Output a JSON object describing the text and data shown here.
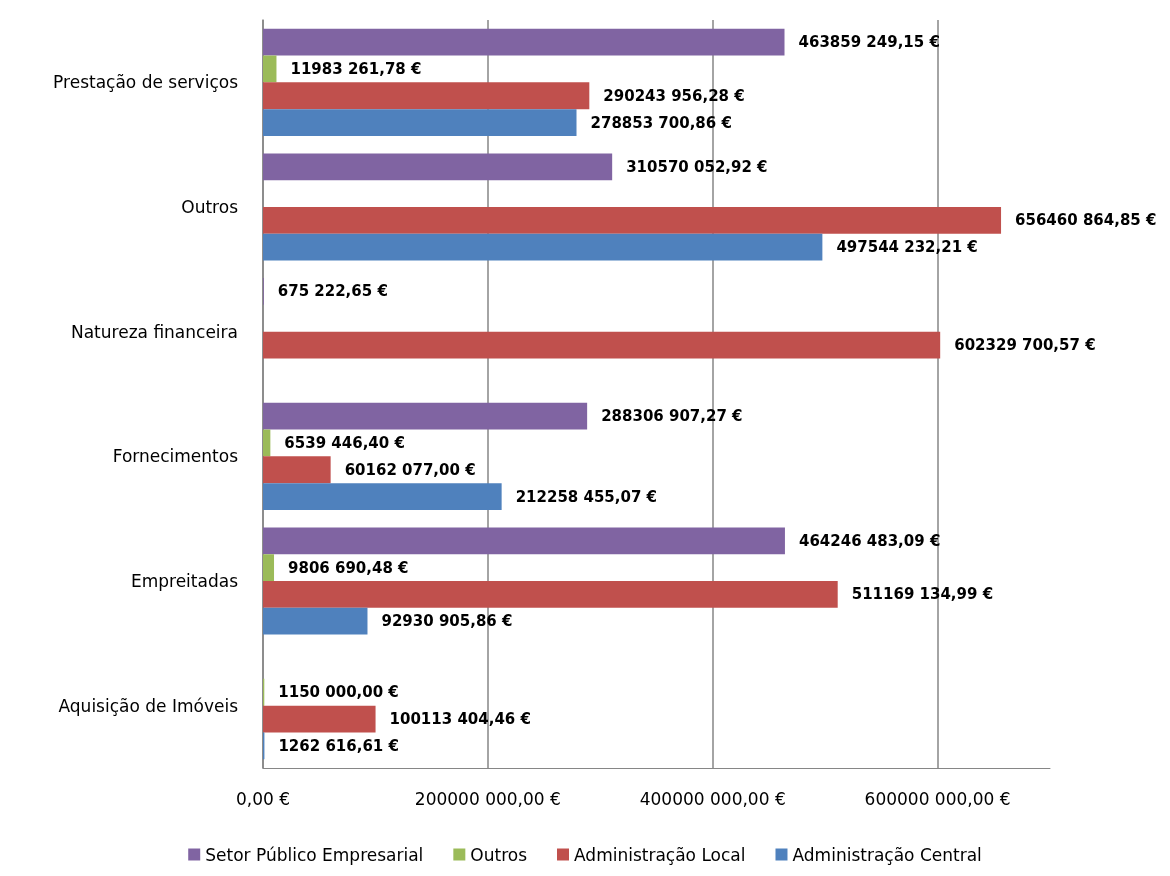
{
  "chart_data": {
    "type": "bar",
    "orientation": "horizontal",
    "categories": [
      "Prestação de serviços",
      "Outros",
      "Natureza financeira",
      "Fornecimentos",
      "Empreitadas",
      "Aquisição de Imóveis"
    ],
    "series": [
      {
        "name": "Setor Público Empresarial",
        "color": "#8064a2",
        "values": [
          463859249.15,
          310570052.92,
          675222.65,
          288306907.27,
          464246483.09,
          null
        ],
        "value_labels": [
          "463859 249,15 €",
          "310570 052,92 €",
          "675 222,65 €",
          "288306 907,27 €",
          "464246 483,09 €",
          null
        ]
      },
      {
        "name": "Outros",
        "color": "#9bbb59",
        "values": [
          11983261.78,
          null,
          null,
          6539446.4,
          9806690.48,
          1150000.0
        ],
        "value_labels": [
          "11983 261,78 €",
          null,
          null,
          "6539 446,40 €",
          "9806 690,48 €",
          "1150 000,00 €"
        ]
      },
      {
        "name": "Administração Local",
        "color": "#c0504d",
        "values": [
          290243956.28,
          656460864.85,
          602329700.57,
          60162077.0,
          511169134.99,
          100113404.46
        ],
        "value_labels": [
          "290243 956,28 €",
          "656460 864,85 €",
          "602329 700,57 €",
          "60162 077,00 €",
          "511169 134,99 €",
          "100113 404,46 €"
        ]
      },
      {
        "name": "Administração Central",
        "color": "#4f81bd",
        "values": [
          278853700.86,
          497544232.21,
          null,
          212258455.07,
          92930905.86,
          1262616.61
        ],
        "value_labels": [
          "278853 700,86 €",
          "497544 232,21 €",
          null,
          "212258 455,07 €",
          "92930 905,86 €",
          "1262 616,61 €"
        ]
      }
    ],
    "xlim": [
      0,
      700000000
    ],
    "xticks": [
      {
        "value": 0,
        "label": "0,00 €"
      },
      {
        "value": 200000000,
        "label": "200000 000,00 €"
      },
      {
        "value": 400000000,
        "label": "400000 000,00 €"
      },
      {
        "value": 600000000,
        "label": "600000 000,00 €"
      }
    ],
    "grid": "x",
    "legend": "bottom"
  }
}
